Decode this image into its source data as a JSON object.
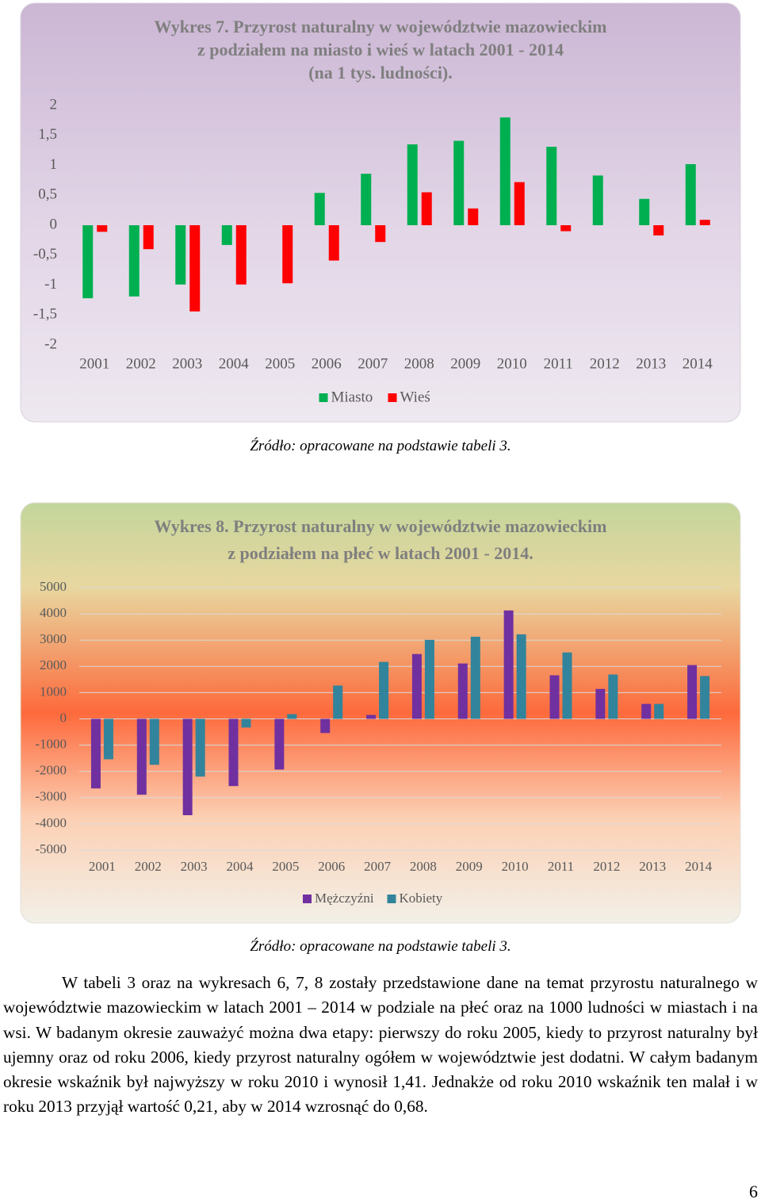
{
  "chart_data": [
    {
      "type": "bar",
      "title": [
        "Wykres 7. Przyrost naturalny w województwie mazowieckim",
        "z podziałem na miasto i wieś w latach 2001 - 2014",
        "(na 1 tys. ludności)."
      ],
      "categories": [
        "2001",
        "2002",
        "2003",
        "2004",
        "2005",
        "2006",
        "2007",
        "2008",
        "2009",
        "2010",
        "2011",
        "2012",
        "2013",
        "2014"
      ],
      "series": [
        {
          "name": "Miasto",
          "color": "#00b050",
          "values": [
            -1.22,
            -1.19,
            -0.99,
            -0.33,
            0,
            0.54,
            0.86,
            1.35,
            1.41,
            1.8,
            1.31,
            0.83,
            0.44,
            1.02
          ]
        },
        {
          "name": "Wieś",
          "color": "#ff0000",
          "values": [
            -0.11,
            -0.4,
            -1.44,
            -0.99,
            -0.97,
            -0.59,
            -0.28,
            0.55,
            0.28,
            0.72,
            -0.1,
            0,
            -0.17,
            0.09
          ]
        }
      ],
      "ylim": [
        -2,
        2
      ],
      "yticks": [
        2,
        {
          "value": 1.5,
          "label": "1,5"
        },
        1,
        {
          "value": 0.5,
          "label": "0,5"
        },
        0,
        {
          "value": -0.5,
          "label": "-0,5"
        },
        -1,
        {
          "value": -1.5,
          "label": "-1,5"
        },
        -2
      ],
      "grid": false,
      "legend": "bottom"
    },
    {
      "type": "bar",
      "title": [
        "Wykres 8. Przyrost naturalny w województwie mazowieckim",
        "z podziałem na płeć w latach 2001 - 2014."
      ],
      "categories": [
        "2001",
        "2002",
        "2003",
        "2004",
        "2005",
        "2006",
        "2007",
        "2008",
        "2009",
        "2010",
        "2011",
        "2012",
        "2013",
        "2014"
      ],
      "series": [
        {
          "name": "Mężczyźni",
          "color": "#7030a0",
          "values": [
            -2650,
            -2890,
            -3670,
            -2560,
            -1930,
            -540,
            150,
            2470,
            2110,
            4130,
            1660,
            1140,
            570,
            2050
          ]
        },
        {
          "name": "Kobiety",
          "color": "#31849b",
          "values": [
            -1540,
            -1750,
            -2200,
            -330,
            180,
            1270,
            2170,
            3010,
            3130,
            3220,
            2530,
            1690,
            570,
            1630
          ]
        }
      ],
      "ylim": [
        -5000,
        5000
      ],
      "yticks": [
        5000,
        4000,
        3000,
        2000,
        1000,
        0,
        -1000,
        -2000,
        -3000,
        -4000,
        -5000
      ],
      "grid": true,
      "legend": "bottom"
    }
  ],
  "sources": [
    "Źródło: opracowane na podstawie tabeli 3.",
    "Źródło: opracowane na podstawie tabeli 3."
  ],
  "paragraph": "W tabeli 3 oraz na wykresach 6, 7, 8 zostały przedstawione dane na temat przyrostu naturalnego w województwie mazowieckim w latach 2001 – 2014 w podziale na płeć oraz na 1000 ludności w miastach i na wsi. W badanym okresie zauważyć można dwa etapy: pierwszy do roku 2005, kiedy to przyrost naturalny był ujemny oraz od roku 2006, kiedy przyrost naturalny ogółem w województwie jest dodatni. W całym badanym okresie wskaźnik był najwyższy w roku 2010 i wynosił 1,41. Jednakże od roku 2010 wskaźnik ten malał i w roku 2013 przyjął wartość 0,21, aby w 2014 wzrosnąć do 0,68.",
  "page_number": "6"
}
